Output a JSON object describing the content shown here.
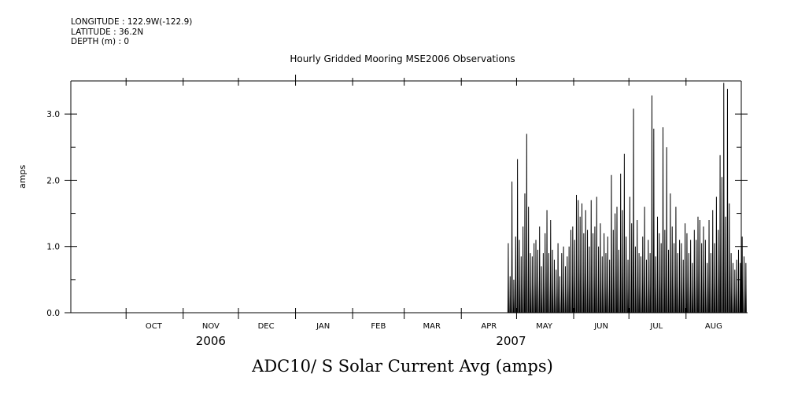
{
  "header": {
    "longitude": "LONGITUDE : 122.9W(-122.9)",
    "latitude": "LATITUDE : 36.2N",
    "depth": "DEPTH (m) : 0"
  },
  "chart_data": {
    "type": "line",
    "title": "Hourly Gridded Mooring MSE2006 Observations",
    "ylabel": "amps",
    "xlabel": "ADC10/ S Solar Current Avg (amps)",
    "ylim": [
      0,
      3.5
    ],
    "yticks": [
      {
        "value": 0.0,
        "label": "0.0"
      },
      {
        "value": 1.0,
        "label": "1.0"
      },
      {
        "value": 2.0,
        "label": "2.0"
      },
      {
        "value": 3.0,
        "label": "3.0"
      }
    ],
    "yminor": [
      0.5,
      1.5,
      2.5
    ],
    "xlim": [
      "2006-09-01",
      "2007-08-31"
    ],
    "month_labels": [
      {
        "label": "OCT",
        "date": "2006-10-16"
      },
      {
        "label": "NOV",
        "date": "2006-11-16"
      },
      {
        "label": "DEC",
        "date": "2006-12-16"
      },
      {
        "label": "JAN",
        "date": "2007-01-16"
      },
      {
        "label": "FEB",
        "date": "2007-02-15"
      },
      {
        "label": "MAR",
        "date": "2007-03-16"
      },
      {
        "label": "APR",
        "date": "2007-04-16"
      },
      {
        "label": "MAY",
        "date": "2007-05-16"
      },
      {
        "label": "JUN",
        "date": "2007-06-16"
      },
      {
        "label": "JUL",
        "date": "2007-07-16"
      },
      {
        "label": "AUG",
        "date": "2007-08-16"
      }
    ],
    "month_boundaries": [
      "2006-10-01",
      "2006-11-01",
      "2006-12-01",
      "2007-01-01",
      "2007-02-01",
      "2007-03-01",
      "2007-04-01",
      "2007-05-01",
      "2007-06-01",
      "2007-07-01",
      "2007-08-01"
    ],
    "year_labels": [
      {
        "label": "2006",
        "date": "2006-11-16"
      },
      {
        "label": "2007",
        "date": "2007-04-28"
      }
    ],
    "series": [
      {
        "start_date": "2007-04-26",
        "daily_peak_amps": [
          1.05,
          0.55,
          1.98,
          0.5,
          1.15,
          2.32,
          1.1,
          0.85,
          1.3,
          1.8,
          2.7,
          1.6,
          0.9,
          0.85,
          1.05,
          1.1,
          0.95,
          1.3,
          0.7,
          0.9,
          1.2,
          1.55,
          0.9,
          1.4,
          0.95,
          0.8,
          0.65,
          1.05,
          0.55,
          0.9,
          1.0,
          0.7,
          0.85,
          1.0,
          1.25,
          1.3,
          1.1,
          1.78,
          1.7,
          1.45,
          1.65,
          1.2,
          1.55,
          1.25,
          1.0,
          1.7,
          1.2,
          1.3,
          1.75,
          1.0,
          1.35,
          0.85,
          1.2,
          0.9,
          1.15,
          0.8,
          2.08,
          1.25,
          1.5,
          1.6,
          0.95,
          2.1,
          1.55,
          2.4,
          1.15,
          0.8,
          1.75,
          1.35,
          3.08,
          1.0,
          1.4,
          0.9,
          0.85,
          1.15,
          1.6,
          0.8,
          1.1,
          0.9,
          3.28,
          2.78,
          0.85,
          1.45,
          1.2,
          1.05,
          2.8,
          1.25,
          2.5,
          0.95,
          1.8,
          1.3,
          1.05,
          1.6,
          0.9,
          1.1,
          1.05,
          0.8,
          1.35,
          1.2,
          0.9,
          1.1,
          0.75,
          1.25,
          1.1,
          1.45,
          1.4,
          1.05,
          1.3,
          1.1,
          0.75,
          1.4,
          0.9,
          1.55,
          1.05,
          1.75,
          1.25,
          2.38,
          2.05,
          3.47,
          1.45,
          3.38,
          1.65,
          0.9,
          0.75,
          0.65,
          0.8,
          0.95,
          0.75,
          1.15,
          0.85,
          0.75
        ]
      }
    ]
  }
}
